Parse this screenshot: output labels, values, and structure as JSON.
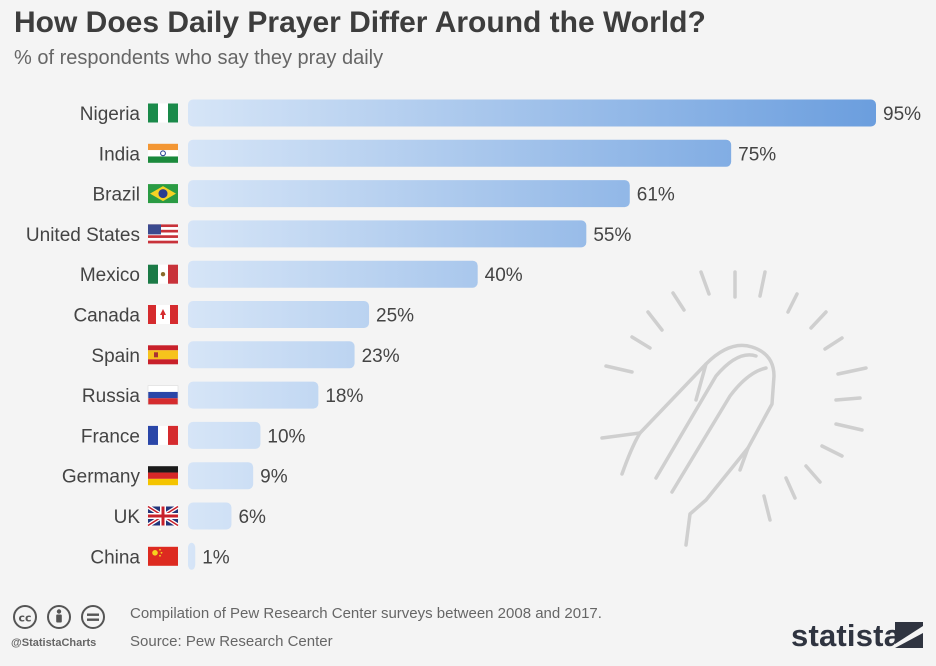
{
  "title": "How Does Daily Prayer Differ Around the World?",
  "subtitle": "% of respondents who say they pray daily",
  "chart_data": {
    "type": "bar",
    "orientation": "horizontal",
    "title": "How Does Daily Prayer Differ Around the World?",
    "subtitle": "% of respondents who say they pray daily",
    "categories": [
      "Nigeria",
      "India",
      "Brazil",
      "United States",
      "Mexico",
      "Canada",
      "Spain",
      "Russia",
      "France",
      "Germany",
      "UK",
      "China"
    ],
    "values": [
      95,
      75,
      61,
      55,
      40,
      25,
      23,
      18,
      10,
      9,
      6,
      1
    ],
    "value_labels": [
      "95%",
      "75%",
      "61%",
      "55%",
      "40%",
      "25%",
      "23%",
      "18%",
      "10%",
      "9%",
      "6%",
      "1%"
    ],
    "xlim": [
      0,
      95
    ],
    "grid": false,
    "legend": "none",
    "colors": {
      "bar_light": "#d3e3f6",
      "bar_dark": "#6c9fdf"
    }
  },
  "footer": {
    "note": "Compilation of Pew Research Center surveys between 2008 and 2017.",
    "source": "Source: Pew Research Center",
    "handle": "@StatistaCharts",
    "brand": "statista"
  },
  "icons": [
    "cc-icon",
    "attribution-icon",
    "no-derivatives-icon",
    "praying-hands-icon",
    "statista-logo-icon"
  ]
}
